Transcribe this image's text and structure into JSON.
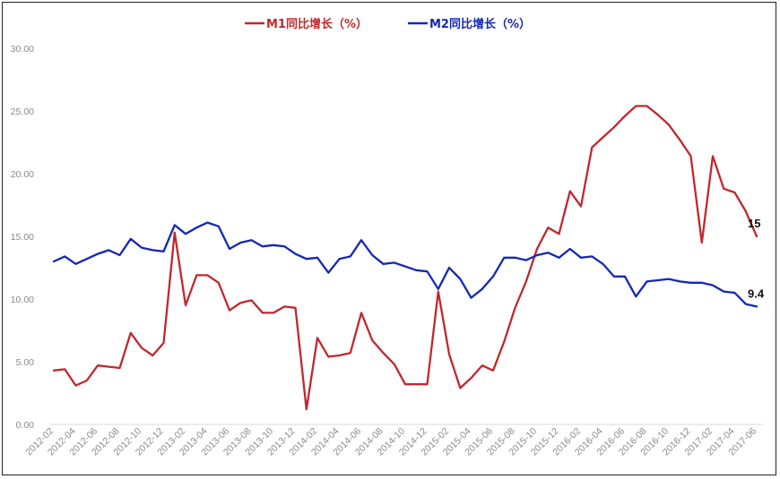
{
  "chart_data": {
    "type": "line",
    "title": "",
    "xlabel": "",
    "ylabel": "",
    "ylim": [
      0,
      30
    ],
    "yticks": [
      "0.00",
      "5.00",
      "10.00",
      "15.00",
      "20.00",
      "25.00",
      "30.00"
    ],
    "x_tick_labels": [
      "2012-02",
      "2012-04",
      "2012-06",
      "2012-08",
      "2012-10",
      "2012-12",
      "2013-02",
      "2013-04",
      "2013-06",
      "2013-08",
      "2013-10",
      "2013-12",
      "2014-02",
      "2014-04",
      "2014-06",
      "2014-08",
      "2014-10",
      "2014-12",
      "2015-02",
      "2015-04",
      "2015-06",
      "2015-08",
      "2015-10",
      "2015-12",
      "2016-02",
      "2016-04",
      "2016-06",
      "2016-08",
      "2016-10",
      "2016-12",
      "2017-02",
      "2017-04",
      "2017-06"
    ],
    "legend_position": "top-center",
    "grid": false,
    "x": [
      "2012-02",
      "2012-03",
      "2012-04",
      "2012-05",
      "2012-06",
      "2012-07",
      "2012-08",
      "2012-09",
      "2012-10",
      "2012-11",
      "2012-12",
      "2013-01",
      "2013-02",
      "2013-03",
      "2013-04",
      "2013-05",
      "2013-06",
      "2013-07",
      "2013-08",
      "2013-09",
      "2013-10",
      "2013-11",
      "2013-12",
      "2014-01",
      "2014-02",
      "2014-03",
      "2014-04",
      "2014-05",
      "2014-06",
      "2014-07",
      "2014-08",
      "2014-09",
      "2014-10",
      "2014-11",
      "2014-12",
      "2015-01",
      "2015-02",
      "2015-03",
      "2015-04",
      "2015-05",
      "2015-06",
      "2015-07",
      "2015-08",
      "2015-09",
      "2015-10",
      "2015-11",
      "2015-12",
      "2016-01",
      "2016-02",
      "2016-03",
      "2016-04",
      "2016-05",
      "2016-06",
      "2016-07",
      "2016-08",
      "2016-09",
      "2016-10",
      "2016-11",
      "2016-12",
      "2017-01",
      "2017-02",
      "2017-03",
      "2017-04",
      "2017-05",
      "2017-06"
    ],
    "series": [
      {
        "name": "M1同比增长（%）",
        "color": "#c0282d",
        "end_label": "15",
        "values": [
          4.3,
          4.4,
          3.1,
          3.5,
          4.7,
          4.6,
          4.5,
          7.3,
          6.1,
          5.5,
          6.5,
          15.3,
          9.5,
          11.9,
          11.9,
          11.3,
          9.1,
          9.7,
          9.9,
          8.9,
          8.9,
          9.4,
          9.3,
          1.2,
          6.9,
          5.4,
          5.5,
          5.7,
          8.9,
          6.7,
          5.7,
          4.8,
          3.2,
          3.2,
          3.2,
          10.6,
          5.6,
          2.9,
          3.7,
          4.7,
          4.3,
          6.6,
          9.3,
          11.4,
          14.0,
          15.7,
          15.2,
          18.6,
          17.4,
          22.1,
          22.9,
          23.7,
          24.6,
          25.4,
          25.4,
          24.7,
          23.9,
          22.7,
          21.4,
          14.5,
          21.4,
          18.8,
          18.5,
          17.0,
          15.0
        ]
      },
      {
        "name": "M2同比增长（%）",
        "color": "#1428b4",
        "end_label": "9.4",
        "values": [
          13.0,
          13.4,
          12.8,
          13.2,
          13.6,
          13.9,
          13.5,
          14.8,
          14.1,
          13.9,
          13.8,
          15.9,
          15.2,
          15.7,
          16.1,
          15.8,
          14.0,
          14.5,
          14.7,
          14.2,
          14.3,
          14.2,
          13.6,
          13.2,
          13.3,
          12.1,
          13.2,
          13.4,
          14.7,
          13.5,
          12.8,
          12.9,
          12.6,
          12.3,
          12.2,
          10.8,
          12.5,
          11.6,
          10.1,
          10.8,
          11.8,
          13.3,
          13.3,
          13.1,
          13.5,
          13.7,
          13.3,
          14.0,
          13.3,
          13.4,
          12.8,
          11.8,
          11.8,
          10.2,
          11.4,
          11.5,
          11.6,
          11.4,
          11.3,
          11.3,
          11.1,
          10.6,
          10.5,
          9.6,
          9.4
        ]
      }
    ]
  }
}
